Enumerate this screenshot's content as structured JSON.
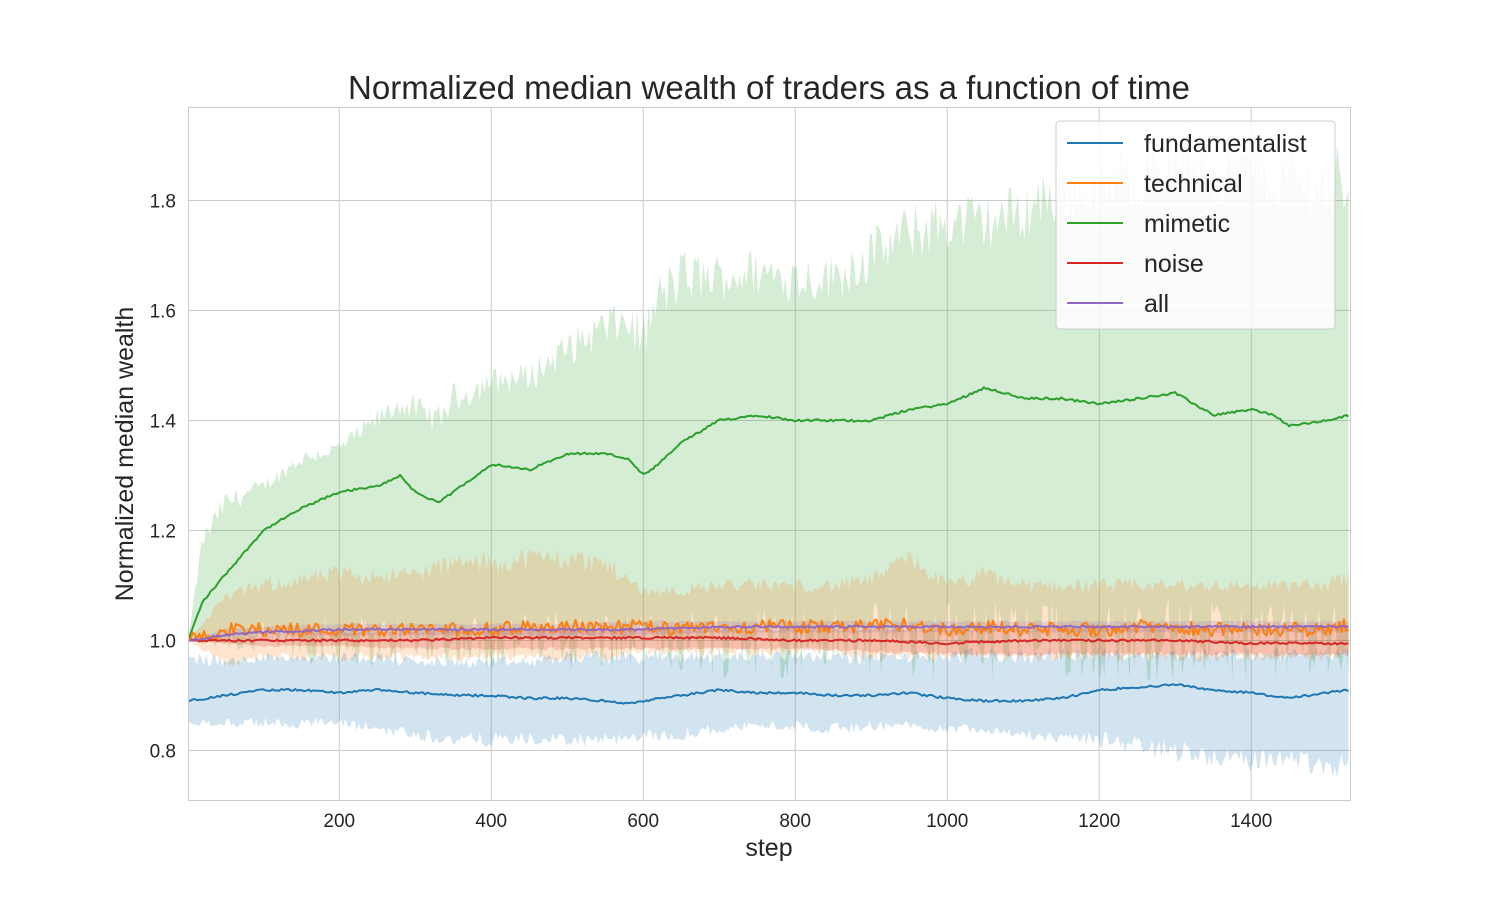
{
  "chart_data": {
    "type": "line",
    "title": "Normalized median wealth of traders as a function of time",
    "xlabel": "step",
    "ylabel": "Normalized median wealth",
    "xlim": [
      1,
      1530
    ],
    "ylim": [
      0.71,
      1.97
    ],
    "xticks": [
      200,
      400,
      600,
      800,
      1000,
      1200,
      1400
    ],
    "yticks": [
      0.8,
      1.0,
      1.2,
      1.4,
      1.6,
      1.8
    ],
    "grid": true,
    "legend_position": "top-right",
    "series": [
      {
        "name": "fundamentalist",
        "color": "#1f77b4",
        "x": [
          1,
          50,
          100,
          150,
          200,
          250,
          300,
          350,
          400,
          450,
          500,
          550,
          580,
          600,
          650,
          700,
          750,
          800,
          850,
          900,
          950,
          1000,
          1050,
          1100,
          1150,
          1200,
          1250,
          1300,
          1350,
          1400,
          1450,
          1500,
          1530
        ],
        "median": [
          0.89,
          0.9,
          0.91,
          0.91,
          0.905,
          0.91,
          0.905,
          0.9,
          0.9,
          0.895,
          0.895,
          0.89,
          0.885,
          0.89,
          0.9,
          0.91,
          0.905,
          0.905,
          0.9,
          0.9,
          0.905,
          0.895,
          0.89,
          0.89,
          0.895,
          0.91,
          0.915,
          0.92,
          0.91,
          0.905,
          0.895,
          0.905,
          0.91
        ],
        "lower": [
          0.85,
          0.85,
          0.85,
          0.85,
          0.85,
          0.84,
          0.83,
          0.82,
          0.82,
          0.82,
          0.82,
          0.82,
          0.82,
          0.825,
          0.83,
          0.84,
          0.845,
          0.845,
          0.84,
          0.845,
          0.845,
          0.84,
          0.84,
          0.83,
          0.82,
          0.82,
          0.81,
          0.8,
          0.79,
          0.78,
          0.79,
          0.77,
          0.78
        ],
        "upper": [
          0.97,
          0.96,
          0.97,
          0.97,
          0.97,
          0.97,
          0.96,
          0.96,
          0.96,
          0.96,
          0.97,
          0.97,
          0.97,
          0.97,
          0.97,
          0.97,
          0.97,
          0.975,
          0.97,
          0.97,
          0.97,
          0.97,
          0.975,
          0.97,
          0.975,
          0.975,
          0.975,
          0.975,
          0.975,
          0.975,
          0.975,
          0.975,
          0.975
        ]
      },
      {
        "name": "technical",
        "color": "#ff7f0e",
        "x": [
          1,
          50,
          100,
          150,
          200,
          250,
          300,
          350,
          400,
          450,
          500,
          550,
          600,
          650,
          700,
          750,
          800,
          850,
          900,
          950,
          1000,
          1050,
          1100,
          1150,
          1200,
          1250,
          1300,
          1350,
          1400,
          1450,
          1500,
          1530
        ],
        "median": [
          1.0,
          1.02,
          1.02,
          1.02,
          1.02,
          1.02,
          1.02,
          1.02,
          1.02,
          1.025,
          1.025,
          1.025,
          1.025,
          1.02,
          1.025,
          1.025,
          1.025,
          1.025,
          1.025,
          1.03,
          1.02,
          1.025,
          1.02,
          1.02,
          1.02,
          1.025,
          1.025,
          1.02,
          1.02,
          1.02,
          1.02,
          1.03
        ],
        "lower": [
          1.0,
          0.96,
          0.97,
          0.97,
          0.97,
          0.97,
          0.97,
          0.97,
          0.97,
          0.97,
          0.97,
          0.97,
          0.98,
          0.98,
          0.98,
          0.98,
          0.98,
          0.98,
          0.97,
          0.97,
          0.97,
          0.97,
          0.97,
          0.97,
          0.97,
          0.97,
          0.97,
          0.97,
          0.97,
          0.97,
          0.97,
          0.98
        ],
        "upper": [
          1.0,
          1.08,
          1.1,
          1.11,
          1.12,
          1.12,
          1.12,
          1.14,
          1.14,
          1.15,
          1.15,
          1.14,
          1.09,
          1.09,
          1.1,
          1.1,
          1.1,
          1.1,
          1.11,
          1.15,
          1.1,
          1.12,
          1.1,
          1.1,
          1.1,
          1.1,
          1.1,
          1.1,
          1.1,
          1.1,
          1.1,
          1.12
        ],
        "noise_amplitude": 0.025
      },
      {
        "name": "mimetic",
        "color": "#2ca02c",
        "x": [
          1,
          20,
          50,
          100,
          150,
          200,
          250,
          280,
          300,
          330,
          350,
          400,
          450,
          500,
          550,
          580,
          600,
          620,
          650,
          700,
          750,
          800,
          850,
          900,
          950,
          1000,
          1050,
          1100,
          1150,
          1200,
          1250,
          1300,
          1350,
          1400,
          1430,
          1450,
          1500,
          1530
        ],
        "median": [
          1.0,
          1.07,
          1.12,
          1.2,
          1.24,
          1.27,
          1.28,
          1.3,
          1.27,
          1.25,
          1.27,
          1.32,
          1.31,
          1.34,
          1.34,
          1.33,
          1.3,
          1.32,
          1.36,
          1.4,
          1.41,
          1.4,
          1.4,
          1.4,
          1.42,
          1.43,
          1.46,
          1.44,
          1.44,
          1.43,
          1.44,
          1.45,
          1.41,
          1.42,
          1.41,
          1.39,
          1.4,
          1.41
        ],
        "lower": [
          1.0,
          1.0,
          1.0,
          1.0,
          1.0,
          1.0,
          1.0,
          1.0,
          1.0,
          1.0,
          1.0,
          1.0,
          1.0,
          1.0,
          1.0,
          1.0,
          1.0,
          1.0,
          1.0,
          1.0,
          1.0,
          1.0,
          1.0,
          1.0,
          1.0,
          1.0,
          1.0,
          1.0,
          1.0,
          1.0,
          1.0,
          1.0,
          1.0,
          1.0,
          1.0,
          1.0,
          1.0,
          1.0
        ],
        "upper": [
          1.0,
          1.18,
          1.25,
          1.28,
          1.33,
          1.35,
          1.4,
          1.43,
          1.42,
          1.4,
          1.44,
          1.47,
          1.48,
          1.53,
          1.57,
          1.58,
          1.55,
          1.62,
          1.66,
          1.66,
          1.67,
          1.66,
          1.66,
          1.7,
          1.74,
          1.76,
          1.76,
          1.78,
          1.82,
          1.81,
          1.85,
          1.87,
          1.86,
          1.85,
          1.84,
          1.84,
          1.82,
          1.85
        ]
      },
      {
        "name": "noise",
        "color": "#d62728",
        "x": [
          1,
          100,
          200,
          300,
          400,
          500,
          600,
          700,
          800,
          900,
          1000,
          1100,
          1200,
          1300,
          1400,
          1500,
          1530
        ],
        "median": [
          1.0,
          1.0,
          1.0,
          1.0,
          1.005,
          1.005,
          1.005,
          1.005,
          1.0,
          1.0,
          0.995,
          1.0,
          1.0,
          1.0,
          0.995,
          0.995,
          0.995
        ],
        "lower": [
          1.0,
          0.99,
          0.99,
          0.985,
          0.985,
          0.985,
          0.985,
          0.985,
          0.985,
          0.98,
          0.975,
          0.975,
          0.975,
          0.975,
          0.975,
          0.975,
          0.975
        ],
        "upper": [
          1.0,
          1.01,
          1.015,
          1.015,
          1.02,
          1.02,
          1.02,
          1.02,
          1.02,
          1.02,
          1.02,
          1.02,
          1.025,
          1.025,
          1.025,
          1.025,
          1.025
        ]
      },
      {
        "name": "all",
        "color": "#9467bd",
        "x": [
          1,
          50,
          100,
          200,
          300,
          400,
          500,
          600,
          700,
          800,
          900,
          1000,
          1100,
          1200,
          1300,
          1400,
          1500,
          1530
        ],
        "median": [
          1.0,
          1.01,
          1.015,
          1.02,
          1.02,
          1.02,
          1.02,
          1.02,
          1.025,
          1.025,
          1.025,
          1.025,
          1.025,
          1.025,
          1.025,
          1.025,
          1.025,
          1.025
        ],
        "lower": [
          1.0,
          1.005,
          1.01,
          1.01,
          1.01,
          1.01,
          1.01,
          1.01,
          1.015,
          1.015,
          1.015,
          1.015,
          1.015,
          1.015,
          1.015,
          1.015,
          1.015,
          1.015
        ],
        "upper": [
          1.0,
          1.02,
          1.025,
          1.03,
          1.03,
          1.03,
          1.03,
          1.035,
          1.035,
          1.035,
          1.035,
          1.035,
          1.035,
          1.035,
          1.035,
          1.035,
          1.035,
          1.035
        ]
      }
    ]
  }
}
